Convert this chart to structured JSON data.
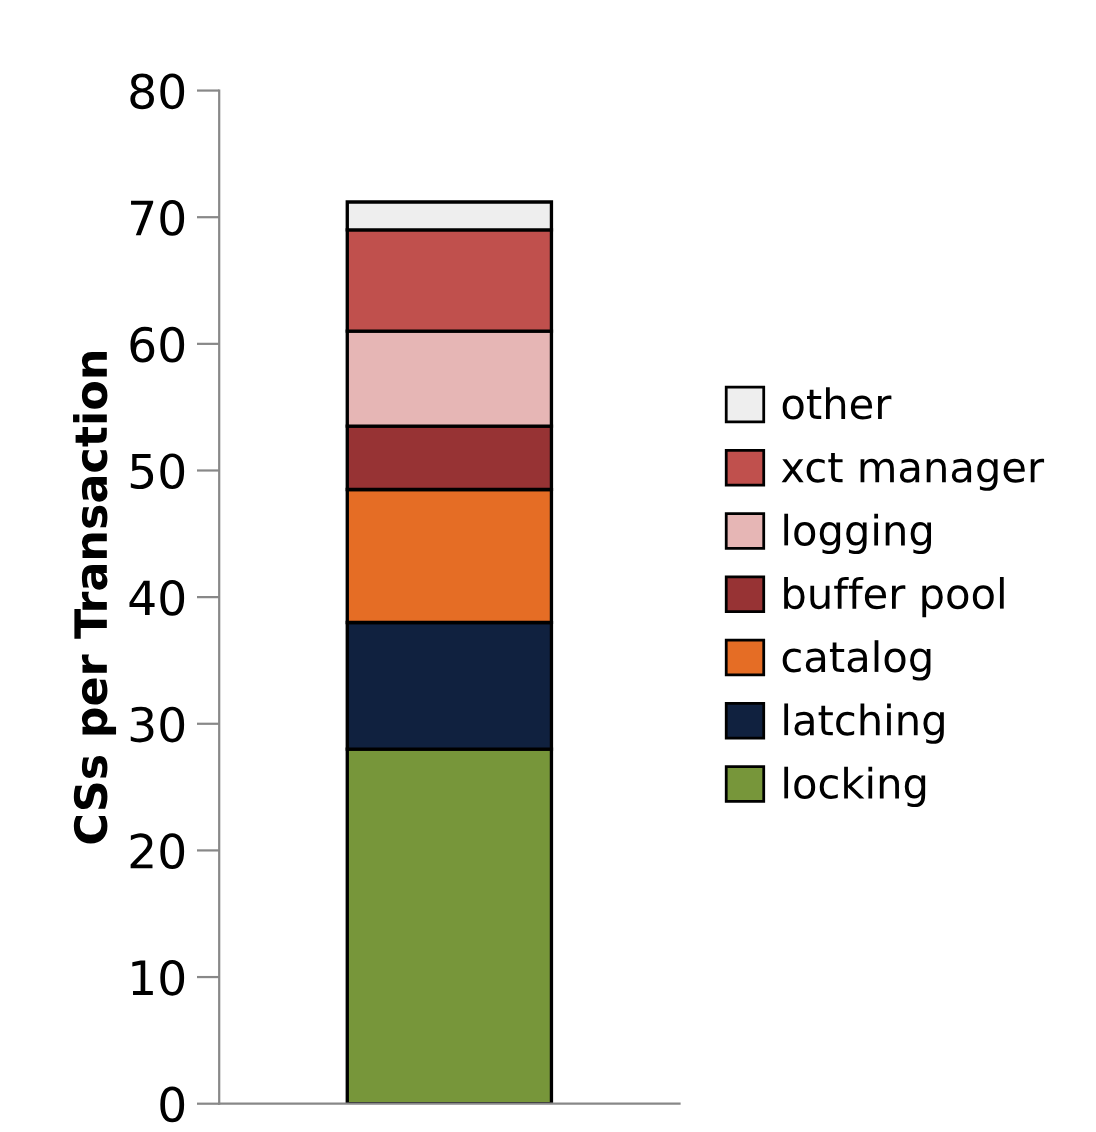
{
  "chart_data": {
    "type": "bar",
    "stacked": true,
    "ylabel": "CSs per Transaction",
    "categories": [
      null
    ],
    "series": [
      {
        "name": "locking",
        "color": "#77963a",
        "values": [
          28
        ]
      },
      {
        "name": "latching",
        "color": "#10213f",
        "values": [
          10
        ]
      },
      {
        "name": "catalog",
        "color": "#e56d25",
        "values": [
          10.5
        ]
      },
      {
        "name": "buffer pool",
        "color": "#973334",
        "values": [
          5
        ]
      },
      {
        "name": "logging",
        "color": "#e6b6b5",
        "values": [
          7.5
        ]
      },
      {
        "name": "xct manager",
        "color": "#c0504d",
        "values": [
          8
        ]
      },
      {
        "name": "other",
        "color": "#eeeeee",
        "values": [
          2.2
        ]
      }
    ],
    "ylim": [
      0,
      80
    ],
    "yticks": [
      0,
      10,
      20,
      30,
      40,
      50,
      60,
      70,
      80
    ],
    "grid": false,
    "legend": "right"
  }
}
